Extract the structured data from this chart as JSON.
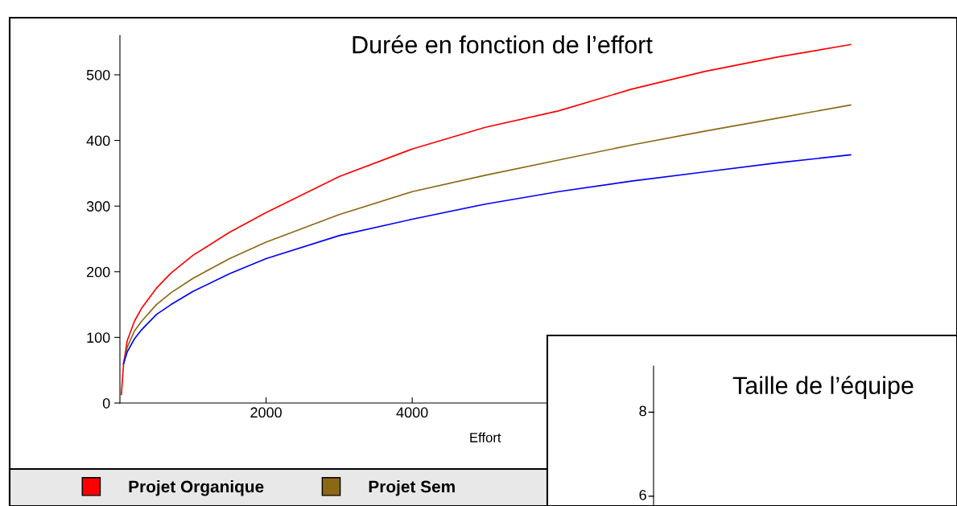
{
  "chart_data": [
    {
      "type": "line",
      "title": "Durée en fonction de l’effort",
      "xlabel": "Effort",
      "xlim": [
        0,
        10200
      ],
      "xticks": [
        2000,
        4000
      ],
      "ylim": [
        0,
        560
      ],
      "yticks": [
        0,
        100,
        200,
        300,
        400,
        500
      ],
      "grid": false,
      "legend": "bottom",
      "marker": "none",
      "line_style": "solid",
      "series": [
        {
          "name": "Projet Organique",
          "color": "#ff0000",
          "x": [
            20,
            50,
            100,
            200,
            300,
            500,
            700,
            1000,
            1500,
            2000,
            3000,
            4000,
            5000,
            6000,
            7000,
            8000,
            9000,
            10000
          ],
          "values": [
            13,
            60,
            95,
            125,
            145,
            175,
            198,
            225,
            260,
            290,
            345,
            387,
            420,
            445,
            478,
            505,
            527,
            546
          ]
        },
        {
          "name": "Projet Sem",
          "color": "#8b6914",
          "x": [
            50,
            100,
            200,
            300,
            500,
            700,
            1000,
            1500,
            2000,
            3000,
            4000,
            5000,
            6000,
            7000,
            8000,
            9000,
            10000
          ],
          "values": [
            60,
            85,
            110,
            125,
            150,
            168,
            190,
            220,
            245,
            287,
            322,
            347,
            370,
            393,
            414,
            434,
            454
          ]
        },
        {
          "color": "#0000ff",
          "x": [
            50,
            100,
            200,
            300,
            500,
            700,
            1000,
            1500,
            2000,
            3000,
            4000,
            5000,
            6000,
            7000,
            8000,
            9000,
            10000
          ],
          "values": [
            60,
            78,
            98,
            112,
            135,
            150,
            170,
            197,
            220,
            255,
            280,
            303,
            322,
            338,
            352,
            366,
            378
          ]
        }
      ]
    },
    {
      "type": "other",
      "title": "Taille de l’équipe",
      "annotations": [
        "8",
        "6"
      ]
    }
  ]
}
